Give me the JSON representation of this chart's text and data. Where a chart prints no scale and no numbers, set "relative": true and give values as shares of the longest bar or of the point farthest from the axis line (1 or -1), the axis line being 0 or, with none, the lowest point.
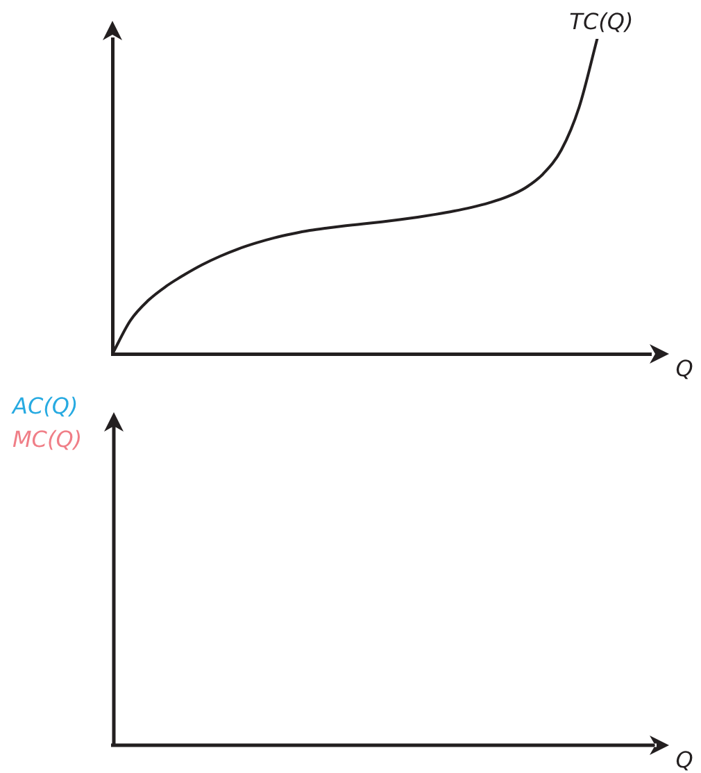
{
  "chart_data": [
    {
      "type": "line",
      "xlabel": "Q",
      "relative": true,
      "categories": [
        null,
        null,
        null,
        null,
        null,
        null,
        null,
        null,
        null,
        null,
        null,
        null,
        null,
        null,
        null,
        null,
        null,
        null,
        null,
        null,
        null,
        null,
        null,
        null,
        null,
        null,
        null,
        null,
        null,
        null,
        null
      ],
      "series": [
        {
          "name": "TC(Q)",
          "color": "#231f20",
          "values": [
            0,
            0.106,
            0.17,
            0.215,
            0.251,
            0.283,
            0.31,
            0.333,
            0.352,
            0.368,
            0.381,
            0.392,
            0.4,
            0.407,
            0.413,
            0.419,
            0.426,
            0.434,
            0.443,
            0.453,
            0.465,
            0.48,
            0.499,
            0.527,
            0.572,
            0.647,
            0.784,
            1,
            null,
            null,
            null
          ]
        }
      ]
    },
    {
      "type": "other",
      "xlabel": "Q",
      "series": [
        {
          "name": "AC(Q)",
          "color": "#27aae1"
        },
        {
          "name": "MC(Q)",
          "color": "#f07e87"
        }
      ]
    }
  ]
}
